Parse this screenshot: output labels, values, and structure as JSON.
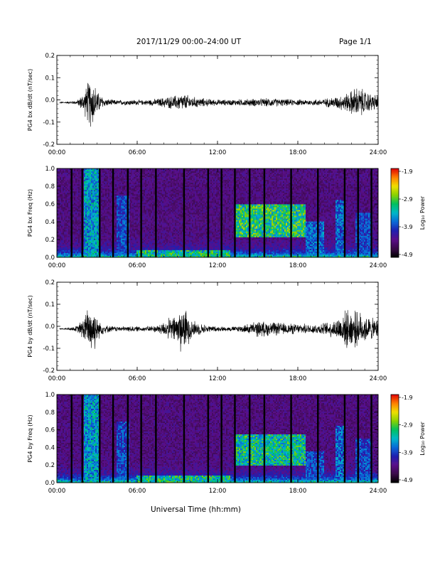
{
  "header": {
    "title": "2017/11/29  00:00–24:00 UT",
    "page": "Page 1/1"
  },
  "xlabel_main": "Universal Time (hh:mm)",
  "colors": {
    "waveform": "#000000",
    "colormap": [
      "#000000",
      "#3a0a4a",
      "#5a0f8a",
      "#1f1fb0",
      "#0a6ad8",
      "#00b8c8",
      "#00c060",
      "#8ad200",
      "#f0e000",
      "#ff8000",
      "#e00000"
    ]
  },
  "colorbar": {
    "label": "Log₁₀ Power",
    "range": [
      -4.9,
      -1.9
    ],
    "ticks": [
      "-1.9",
      "-2.9",
      "-3.9",
      "-4.9"
    ]
  },
  "chart_data": [
    {
      "type": "line",
      "ylabel": "PG4 bx dB/dt (nT/sec)",
      "x_range_hours": [
        0,
        24
      ],
      "xticks": [
        "00:00",
        "06:00",
        "12:00",
        "18:00",
        "24:00"
      ],
      "ylim": [
        -0.2,
        0.2
      ],
      "yticks": [
        "0.2",
        "0.1",
        "0.0",
        "-0.1",
        "-0.2"
      ],
      "x_hours": [
        0.5,
        1.5,
        2.0,
        2.4,
        2.6,
        2.8,
        3.1,
        3.6,
        4.5,
        5.5,
        6.5,
        7.5,
        8.3,
        8.8,
        9.3,
        9.7,
        10.1,
        10.6,
        11.2,
        12.0,
        13.0,
        14.0,
        15.0,
        16.0,
        17.0,
        18.0,
        19.0,
        20.0,
        20.8,
        21.3,
        21.8,
        22.3,
        22.8,
        23.3,
        23.8
      ],
      "amplitude": [
        0.003,
        0.01,
        0.05,
        0.12,
        0.13,
        0.1,
        0.05,
        0.02,
        0.012,
        0.015,
        0.012,
        0.02,
        0.03,
        0.035,
        0.045,
        0.04,
        0.03,
        0.025,
        0.02,
        0.015,
        0.015,
        0.018,
        0.02,
        0.022,
        0.018,
        0.015,
        0.015,
        0.02,
        0.03,
        0.04,
        0.05,
        0.08,
        0.07,
        0.05,
        0.04
      ]
    },
    {
      "type": "heatmap",
      "ylabel": "PG4 bx Freq (Hz)",
      "x_range_hours": [
        0,
        24
      ],
      "xticks": [
        "00:00",
        "06:00",
        "12:00",
        "18:00",
        "24:00"
      ],
      "ylim": [
        0.0,
        1.0
      ],
      "yticks": [
        "1.0",
        "0.8",
        "0.6",
        "0.4",
        "0.2",
        "0.0"
      ],
      "gaps_hours": [
        1.1,
        1.9,
        3.2,
        4.2,
        5.3,
        6.3,
        7.4,
        9.5,
        11.3,
        12.3,
        13.3,
        14.4,
        15.5,
        17.5,
        19.5,
        21.5,
        22.5,
        23.5
      ],
      "features": [
        {
          "t0": 2.0,
          "t1": 3.2,
          "f0": 0.0,
          "f1": 1.0,
          "level": 0.6
        },
        {
          "t0": 4.5,
          "t1": 5.4,
          "f0": 0.0,
          "f1": 0.7,
          "level": 0.45
        },
        {
          "t0": 6.0,
          "t1": 13.0,
          "f0": 0.0,
          "f1": 0.08,
          "level": 0.7
        },
        {
          "t0": 13.3,
          "t1": 18.6,
          "f0": 0.22,
          "f1": 0.6,
          "level": 0.75
        },
        {
          "t0": 18.6,
          "t1": 20.0,
          "f0": 0.05,
          "f1": 0.4,
          "level": 0.5
        },
        {
          "t0": 20.8,
          "t1": 21.6,
          "f0": 0.0,
          "f1": 0.65,
          "level": 0.5
        },
        {
          "t0": 22.3,
          "t1": 23.6,
          "f0": 0.0,
          "f1": 0.5,
          "level": 0.45
        }
      ]
    },
    {
      "type": "line",
      "ylabel": "PG4 by dB/dt (nT/sec)",
      "x_range_hours": [
        0,
        24
      ],
      "xticks": [
        "00:00",
        "06:00",
        "12:00",
        "18:00",
        "24:00"
      ],
      "ylim": [
        -0.2,
        0.2
      ],
      "yticks": [
        "0.2",
        "0.1",
        "0.0",
        "-0.1",
        "-0.2"
      ],
      "x_hours": [
        0.5,
        1.5,
        2.0,
        2.4,
        2.6,
        2.8,
        3.1,
        3.6,
        4.5,
        5.5,
        6.5,
        7.5,
        8.3,
        8.8,
        9.3,
        9.7,
        10.1,
        10.6,
        11.2,
        12.0,
        13.0,
        14.0,
        15.0,
        16.0,
        17.0,
        18.0,
        19.0,
        20.0,
        20.8,
        21.3,
        21.8,
        22.3,
        22.8,
        23.3,
        23.8
      ],
      "amplitude": [
        0.003,
        0.015,
        0.06,
        0.12,
        0.14,
        0.11,
        0.05,
        0.02,
        0.012,
        0.015,
        0.012,
        0.02,
        0.05,
        0.07,
        0.12,
        0.09,
        0.05,
        0.03,
        0.02,
        0.012,
        0.012,
        0.02,
        0.04,
        0.035,
        0.03,
        0.025,
        0.025,
        0.03,
        0.05,
        0.08,
        0.1,
        0.09,
        0.08,
        0.06,
        0.05
      ]
    },
    {
      "type": "heatmap",
      "ylabel": "PG4 by Freq (Hz)",
      "x_range_hours": [
        0,
        24
      ],
      "xticks": [
        "00:00",
        "06:00",
        "12:00",
        "18:00",
        "24:00"
      ],
      "ylim": [
        0.0,
        1.0
      ],
      "yticks": [
        "1.0",
        "0.8",
        "0.6",
        "0.4",
        "0.2",
        "0.0"
      ],
      "gaps_hours": [
        1.1,
        1.9,
        3.2,
        4.2,
        5.3,
        6.3,
        7.4,
        9.5,
        11.3,
        12.3,
        13.3,
        14.4,
        15.5,
        17.5,
        19.5,
        21.5,
        22.5,
        23.5
      ],
      "features": [
        {
          "t0": 2.0,
          "t1": 3.2,
          "f0": 0.0,
          "f1": 1.0,
          "level": 0.6
        },
        {
          "t0": 4.5,
          "t1": 5.4,
          "f0": 0.0,
          "f1": 0.7,
          "level": 0.45
        },
        {
          "t0": 6.0,
          "t1": 13.0,
          "f0": 0.0,
          "f1": 0.08,
          "level": 0.7
        },
        {
          "t0": 13.3,
          "t1": 18.6,
          "f0": 0.2,
          "f1": 0.55,
          "level": 0.7
        },
        {
          "t0": 18.6,
          "t1": 20.0,
          "f0": 0.05,
          "f1": 0.35,
          "level": 0.45
        },
        {
          "t0": 20.8,
          "t1": 21.6,
          "f0": 0.0,
          "f1": 0.65,
          "level": 0.5
        },
        {
          "t0": 22.3,
          "t1": 23.6,
          "f0": 0.0,
          "f1": 0.5,
          "level": 0.45
        }
      ]
    }
  ]
}
